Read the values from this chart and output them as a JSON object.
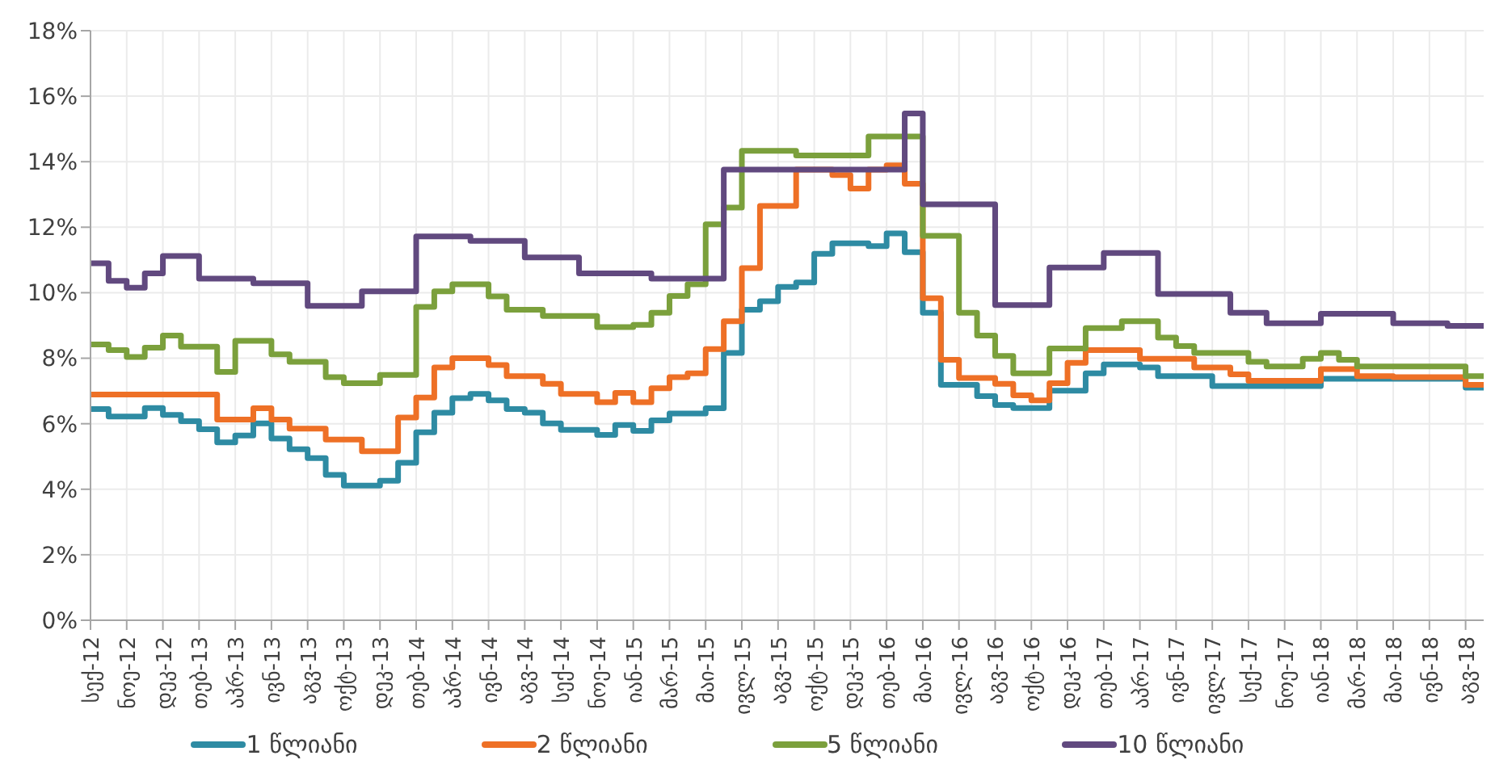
{
  "chart_data": {
    "type": "step",
    "grid": true,
    "legend": "bottom",
    "marker": "none",
    "categories": [
      "სექ-12",
      null,
      "ნოე-12",
      null,
      "დეკ-12",
      null,
      "თებ-13",
      null,
      "აპრ-13",
      null,
      "ივნ-13",
      null,
      "აგვ-13",
      null,
      "ოქტ-13",
      null,
      "დეკ-13",
      null,
      "თებ-14",
      null,
      "აპრ-14",
      null,
      "ივნ-14",
      null,
      "აგვ-14",
      null,
      "სექ-14",
      null,
      "ნოე-14",
      null,
      "იან-15",
      null,
      "მარ-15",
      null,
      "მაი-15",
      null,
      "ივლ-15",
      null,
      "აგვ-15",
      null,
      "ოქტ-15",
      null,
      "დეკ-15",
      null,
      "თებ-16",
      null,
      "მაი-16",
      null,
      "ივლ-16",
      null,
      "აგვ-16",
      null,
      "ოქტ-16",
      null,
      "დეკ-16",
      null,
      "თებ-17",
      null,
      "აპრ-17",
      null,
      "ივნ-17",
      null,
      "ივლ-17",
      null,
      "სექ-17",
      null,
      "ნოე-17",
      null,
      "იან-18",
      null,
      "მარ-18",
      null,
      "მაი-18",
      null,
      "ივნ-18",
      null,
      "აგვ-18",
      null
    ],
    "ylim": [
      0,
      18
    ],
    "yticks": [
      {
        "value": 0,
        "label": "0%"
      },
      {
        "value": 2,
        "label": "2%"
      },
      {
        "value": 4,
        "label": "4%"
      },
      {
        "value": 6,
        "label": "6%"
      },
      {
        "value": 8,
        "label": "8%"
      },
      {
        "value": 10,
        "label": "10%"
      },
      {
        "value": 12,
        "label": "12%"
      },
      {
        "value": 14,
        "label": "14%"
      },
      {
        "value": 16,
        "label": "16%"
      },
      {
        "value": 18,
        "label": "18%"
      }
    ],
    "series": [
      {
        "name": "1 წლიანი",
        "color": "#2e8ba3",
        "values": [
          6.45,
          6.22,
          6.22,
          6.48,
          6.27,
          6.08,
          5.83,
          5.43,
          5.64,
          6.01,
          5.55,
          5.22,
          4.95,
          4.44,
          4.11,
          4.11,
          4.26,
          4.81,
          5.74,
          6.34,
          6.78,
          6.91,
          6.71,
          6.45,
          6.34,
          6.01,
          5.81,
          5.81,
          5.66,
          5.96,
          5.78,
          6.1,
          6.31,
          6.31,
          6.47,
          8.16,
          9.48,
          9.74,
          10.18,
          10.31,
          11.19,
          11.51,
          11.51,
          11.42,
          11.81,
          11.24,
          9.39,
          7.19,
          7.19,
          6.84,
          6.57,
          6.48,
          6.48,
          7.01,
          7.01,
          7.54,
          7.81,
          7.81,
          7.72,
          7.45,
          7.45,
          7.45,
          7.15,
          7.15,
          7.15,
          7.15,
          7.15,
          7.15,
          7.37,
          7.37,
          7.37,
          7.37,
          7.37,
          7.37,
          7.37,
          7.37,
          7.1,
          7.1
        ]
      },
      {
        "name": "2 წლიანი",
        "color": "#ee7026",
        "values": [
          6.89,
          6.89,
          6.89,
          6.89,
          6.89,
          6.89,
          6.89,
          6.13,
          6.13,
          6.47,
          6.13,
          5.85,
          5.85,
          5.52,
          5.52,
          5.16,
          5.16,
          6.19,
          6.8,
          7.72,
          8.0,
          8.0,
          7.79,
          7.45,
          7.45,
          7.22,
          6.91,
          6.91,
          6.66,
          6.94,
          6.66,
          7.08,
          7.42,
          7.54,
          8.28,
          9.13,
          10.75,
          12.65,
          12.65,
          13.76,
          13.76,
          13.59,
          13.18,
          13.76,
          13.89,
          13.33,
          9.83,
          7.95,
          7.4,
          7.4,
          7.22,
          6.87,
          6.71,
          7.24,
          7.86,
          8.25,
          8.25,
          8.25,
          7.98,
          7.98,
          7.98,
          7.72,
          7.72,
          7.51,
          7.31,
          7.31,
          7.31,
          7.31,
          7.67,
          7.67,
          7.45,
          7.45,
          7.42,
          7.42,
          7.42,
          7.42,
          7.19,
          7.19
        ]
      },
      {
        "name": "5 წლიანი",
        "color": "#7ba03c",
        "values": [
          8.42,
          8.25,
          8.04,
          8.32,
          8.69,
          8.35,
          8.35,
          7.58,
          8.53,
          8.53,
          8.12,
          7.89,
          7.89,
          7.42,
          7.24,
          7.24,
          7.49,
          7.49,
          9.57,
          10.04,
          10.26,
          10.26,
          9.89,
          9.48,
          9.48,
          9.29,
          9.29,
          9.29,
          8.95,
          8.95,
          9.02,
          9.39,
          9.9,
          10.26,
          12.09,
          12.6,
          14.33,
          14.33,
          14.33,
          14.19,
          14.19,
          14.19,
          14.19,
          14.77,
          14.77,
          14.77,
          11.74,
          11.74,
          9.39,
          8.69,
          8.07,
          7.54,
          7.54,
          8.3,
          8.3,
          8.92,
          8.92,
          9.13,
          9.13,
          8.63,
          8.37,
          8.16,
          8.16,
          8.16,
          7.89,
          7.75,
          7.75,
          7.98,
          8.16,
          7.95,
          7.75,
          7.75,
          7.75,
          7.75,
          7.75,
          7.75,
          7.45,
          7.45
        ]
      },
      {
        "name": "10 წლიანი",
        "color": "#61497f",
        "values": [
          10.9,
          10.36,
          10.15,
          10.59,
          11.12,
          11.12,
          10.43,
          10.43,
          10.43,
          10.29,
          10.29,
          10.29,
          9.6,
          9.6,
          9.6,
          10.04,
          10.04,
          10.04,
          11.72,
          11.72,
          11.72,
          11.58,
          11.58,
          11.58,
          11.08,
          11.08,
          11.08,
          10.59,
          10.59,
          10.59,
          10.59,
          10.43,
          10.43,
          10.43,
          10.43,
          13.76,
          13.76,
          13.76,
          13.76,
          13.76,
          13.76,
          13.76,
          13.76,
          13.76,
          13.76,
          15.47,
          12.7,
          12.7,
          12.7,
          12.7,
          9.62,
          9.62,
          9.62,
          10.77,
          10.77,
          10.77,
          11.21,
          11.21,
          11.21,
          9.96,
          9.96,
          9.96,
          9.96,
          9.39,
          9.39,
          9.07,
          9.07,
          9.07,
          9.36,
          9.36,
          9.36,
          9.36,
          9.07,
          9.07,
          9.07,
          8.99,
          8.99,
          8.99
        ]
      }
    ]
  }
}
